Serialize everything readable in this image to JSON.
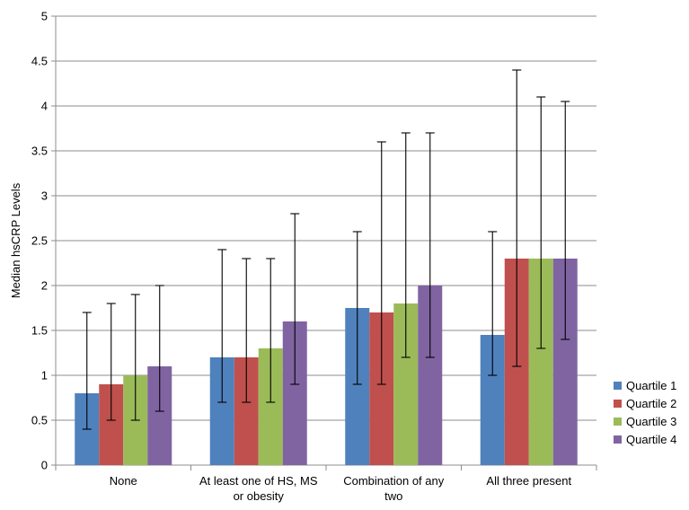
{
  "chart_data": {
    "type": "bar",
    "ylabel": "Median hsCRP Levels",
    "xlabel": "",
    "ylim": [
      0,
      5
    ],
    "y_ticks": [
      "0",
      "0.5",
      "1",
      "1.5",
      "2",
      "2.5",
      "3",
      "3.5",
      "4",
      "4.5",
      "5"
    ],
    "y_tick_values": [
      0,
      0.5,
      1,
      1.5,
      2,
      2.5,
      3,
      3.5,
      4,
      4.5,
      5
    ],
    "grid": true,
    "legend_position": "right",
    "categories": [
      [
        "None"
      ],
      [
        "At least one of HS, MS",
        "or obesity"
      ],
      [
        "Combination of any",
        "two"
      ],
      [
        "All three present"
      ]
    ],
    "series": [
      {
        "name": "Quartile 1",
        "color": "#4F81BD",
        "values": [
          0.8,
          1.2,
          1.75,
          1.45
        ],
        "err_low": [
          0.4,
          0.7,
          0.9,
          1.0
        ],
        "err_high": [
          1.7,
          2.4,
          2.6,
          2.6
        ]
      },
      {
        "name": "Quartile 2",
        "color": "#C0504D",
        "values": [
          0.9,
          1.2,
          1.7,
          2.3
        ],
        "err_low": [
          0.5,
          0.7,
          0.9,
          1.1
        ],
        "err_high": [
          1.8,
          2.3,
          3.6,
          4.4
        ]
      },
      {
        "name": "Quartile 3",
        "color": "#9BBB59",
        "values": [
          1.0,
          1.3,
          1.8,
          2.3
        ],
        "err_low": [
          0.5,
          0.7,
          1.2,
          1.3
        ],
        "err_high": [
          1.9,
          2.3,
          3.7,
          4.1
        ]
      },
      {
        "name": "Quartile 4",
        "color": "#8064A2",
        "values": [
          1.1,
          1.6,
          2.0,
          2.3
        ],
        "err_low": [
          0.6,
          0.9,
          1.2,
          1.4
        ],
        "err_high": [
          2.0,
          2.8,
          3.7,
          4.05
        ]
      }
    ]
  }
}
